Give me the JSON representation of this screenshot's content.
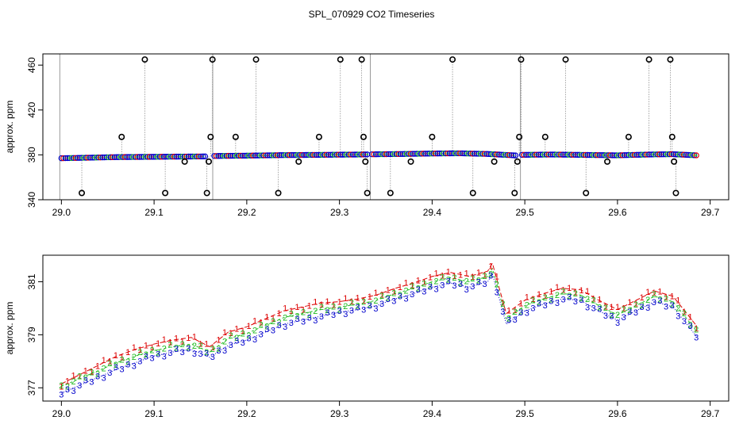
{
  "title": "SPL_070929  CO2 Timeseries",
  "colors": {
    "outlier": "#000000",
    "ch1": "#dd0000",
    "ch2": "#22bb22",
    "ch3": "#0000cc",
    "cyan": "#00cccc",
    "spike": "#808080"
  },
  "chart_data": [
    {
      "type": "scatter",
      "name": "overview",
      "xlabel": "",
      "ylabel": "approx. ppm",
      "xlim": [
        28.98,
        29.72
      ],
      "ylim": [
        340,
        470
      ],
      "xticks": [
        29.0,
        29.1,
        29.2,
        29.3,
        29.4,
        29.5,
        29.6,
        29.7
      ],
      "xtick_labels": [
        "29.0",
        "29.1",
        "29.2",
        "29.3",
        "29.4",
        "29.5",
        "29.6",
        "29.7"
      ],
      "yticks": [
        340,
        380,
        420,
        460
      ],
      "ytick_labels": [
        "340",
        "380",
        "420",
        "460"
      ],
      "series": [
        {
          "name": "baseline",
          "segments": [
            {
              "x": [
                29.0,
                29.03,
                29.06,
                29.09,
                29.12,
                29.155
              ],
              "y": [
                377.0,
                377.5,
                378.0,
                378.2,
                378.4,
                378.6
              ]
            },
            {
              "x": [
                29.165,
                29.2,
                29.24,
                29.28,
                29.32,
                29.33
              ],
              "y": [
                379.0,
                379.3,
                379.8,
                380.0,
                380.3,
                380.4
              ]
            },
            {
              "x": [
                29.335,
                29.37,
                29.4,
                29.43,
                29.46,
                29.49
              ],
              "y": [
                380.5,
                380.8,
                381.2,
                381.4,
                380.8,
                379.5
              ]
            },
            {
              "x": [
                29.497,
                29.53,
                29.56,
                29.6,
                29.64,
                29.66,
                29.685
              ],
              "y": [
                380.0,
                380.3,
                380.0,
                379.6,
                380.4,
                380.6,
                379.6
              ]
            }
          ]
        },
        {
          "name": "outliers",
          "points": [
            {
              "x": 29.022,
              "y": 346
            },
            {
              "x": 29.065,
              "y": 396
            },
            {
              "x": 29.09,
              "y": 465
            },
            {
              "x": 29.112,
              "y": 346
            },
            {
              "x": 29.133,
              "y": 374
            },
            {
              "x": 29.157,
              "y": 346
            },
            {
              "x": 29.159,
              "y": 374
            },
            {
              "x": 29.161,
              "y": 396
            },
            {
              "x": 29.163,
              "y": 465
            },
            {
              "x": 29.188,
              "y": 396
            },
            {
              "x": 29.21,
              "y": 465
            },
            {
              "x": 29.234,
              "y": 346
            },
            {
              "x": 29.256,
              "y": 374
            },
            {
              "x": 29.278,
              "y": 396
            },
            {
              "x": 29.301,
              "y": 465
            },
            {
              "x": 29.324,
              "y": 465
            },
            {
              "x": 29.326,
              "y": 396
            },
            {
              "x": 29.328,
              "y": 374
            },
            {
              "x": 29.33,
              "y": 346
            },
            {
              "x": 29.355,
              "y": 346
            },
            {
              "x": 29.377,
              "y": 374
            },
            {
              "x": 29.4,
              "y": 396
            },
            {
              "x": 29.422,
              "y": 465
            },
            {
              "x": 29.444,
              "y": 346
            },
            {
              "x": 29.467,
              "y": 374
            },
            {
              "x": 29.489,
              "y": 346
            },
            {
              "x": 29.492,
              "y": 374
            },
            {
              "x": 29.494,
              "y": 396
            },
            {
              "x": 29.496,
              "y": 465
            },
            {
              "x": 29.522,
              "y": 396
            },
            {
              "x": 29.544,
              "y": 465
            },
            {
              "x": 29.566,
              "y": 346
            },
            {
              "x": 29.589,
              "y": 374
            },
            {
              "x": 29.612,
              "y": 396
            },
            {
              "x": 29.634,
              "y": 465
            },
            {
              "x": 29.657,
              "y": 465
            },
            {
              "x": 29.659,
              "y": 396
            },
            {
              "x": 29.661,
              "y": 374
            },
            {
              "x": 29.663,
              "y": 346
            }
          ]
        }
      ]
    },
    {
      "type": "line",
      "name": "zoomed",
      "xlabel": "",
      "ylabel": "approx. ppm",
      "xlim": [
        28.98,
        29.72
      ],
      "ylim": [
        376.5,
        382.0
      ],
      "xticks": [
        29.0,
        29.1,
        29.2,
        29.3,
        29.4,
        29.5,
        29.6,
        29.7
      ],
      "xtick_labels": [
        "29.0",
        "29.1",
        "29.2",
        "29.3",
        "29.4",
        "29.5",
        "29.6",
        "29.7"
      ],
      "yticks": [
        377,
        379,
        381
      ],
      "ytick_labels": [
        "377",
        "379",
        "381"
      ],
      "series": [
        {
          "name": "1",
          "symbol": "1",
          "x": [
            29.0,
            29.02,
            29.04,
            29.06,
            29.08,
            29.1,
            29.12,
            29.14,
            29.16,
            29.18,
            29.2,
            29.22,
            29.24,
            29.26,
            29.28,
            29.3,
            29.32,
            29.34,
            29.36,
            29.38,
            29.4,
            29.42,
            29.44,
            29.46,
            29.465,
            29.48,
            29.5,
            29.52,
            29.54,
            29.56,
            29.58,
            29.6,
            29.62,
            29.64,
            29.66,
            29.685
          ],
          "y": [
            377.15,
            377.5,
            377.85,
            378.2,
            378.45,
            378.65,
            378.8,
            378.9,
            378.55,
            379.1,
            379.3,
            379.6,
            379.9,
            380.05,
            380.2,
            380.25,
            380.35,
            380.5,
            380.75,
            380.95,
            381.2,
            381.35,
            381.2,
            381.4,
            381.7,
            379.8,
            380.3,
            380.55,
            380.75,
            380.7,
            380.3,
            379.95,
            380.3,
            380.65,
            380.45,
            379.35
          ]
        },
        {
          "name": "2",
          "symbol": "2",
          "x": [
            29.0,
            29.02,
            29.04,
            29.06,
            29.08,
            29.1,
            29.12,
            29.14,
            29.16,
            29.18,
            29.2,
            29.22,
            29.24,
            29.26,
            29.28,
            29.3,
            29.32,
            29.34,
            29.36,
            29.38,
            29.4,
            29.42,
            29.44,
            29.46,
            29.465,
            29.48,
            29.5,
            29.52,
            29.54,
            29.56,
            29.58,
            29.6,
            29.62,
            29.64,
            29.66,
            29.685
          ],
          "y": [
            377.05,
            377.35,
            377.65,
            377.95,
            378.2,
            378.4,
            378.55,
            378.65,
            378.35,
            378.85,
            379.05,
            379.35,
            379.65,
            379.8,
            379.95,
            380.05,
            380.15,
            380.3,
            380.55,
            380.75,
            381.0,
            381.15,
            381.0,
            381.2,
            381.5,
            379.6,
            380.1,
            380.35,
            380.55,
            380.5,
            380.1,
            379.75,
            380.1,
            380.45,
            380.25,
            379.15
          ]
        },
        {
          "name": "3",
          "symbol": "3",
          "x": [
            29.0,
            29.02,
            29.04,
            29.06,
            29.08,
            29.1,
            29.12,
            29.14,
            29.16,
            29.18,
            29.2,
            29.22,
            29.24,
            29.26,
            29.28,
            29.3,
            29.32,
            29.34,
            29.36,
            29.38,
            29.4,
            29.42,
            29.44,
            29.46,
            29.465,
            29.48,
            29.5,
            29.52,
            29.54,
            29.56,
            29.58,
            29.6,
            29.62,
            29.64,
            29.66,
            29.685
          ],
          "y": [
            376.8,
            377.1,
            377.4,
            377.7,
            377.95,
            378.2,
            378.35,
            378.45,
            378.15,
            378.6,
            378.8,
            379.1,
            379.4,
            379.55,
            379.7,
            379.85,
            379.95,
            380.1,
            380.35,
            380.55,
            380.8,
            380.95,
            380.8,
            381.0,
            381.3,
            379.4,
            379.9,
            380.15,
            380.35,
            380.3,
            379.9,
            379.55,
            379.9,
            380.25,
            380.05,
            378.95
          ]
        }
      ]
    }
  ]
}
